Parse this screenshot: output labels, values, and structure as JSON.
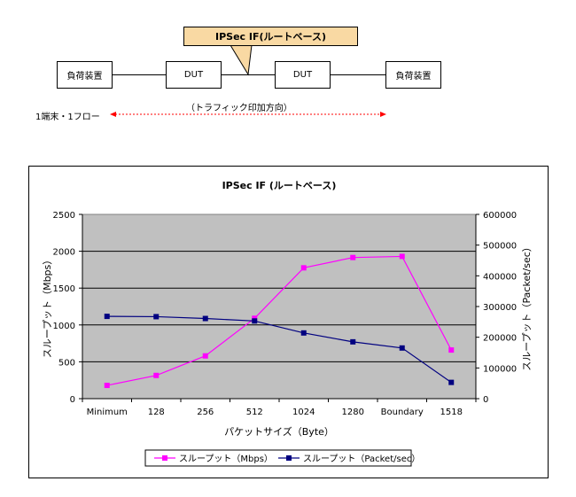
{
  "diagram": {
    "load_left": "負荷装置",
    "dut_left": "DUT",
    "dut_right": "DUT",
    "load_right": "負荷装置",
    "callout": "IPSec IF(ルートベース)",
    "direction_label": "（トラフィック印加方向）",
    "flow_label": "1端末・1フロー"
  },
  "chart_data": {
    "type": "line",
    "title": "IPSec IF (ルートベース)",
    "xlabel": "パケットサイズ（Byte）",
    "ylabel": "スループット（Mbps）",
    "y2label": "スループット（Packet/sec）",
    "categories": [
      "Minimum",
      "128",
      "256",
      "512",
      "1024",
      "1280",
      "Boundary",
      "1518"
    ],
    "ylim": [
      0,
      2500
    ],
    "y2lim": [
      0,
      600000
    ],
    "yticks": [
      "0",
      "500",
      "1000",
      "1500",
      "2000",
      "2500"
    ],
    "y2ticks": [
      "0",
      "100000",
      "200000",
      "300000",
      "400000",
      "500000",
      "600000"
    ],
    "series": [
      {
        "name": "スループット（Mbps）",
        "axis": "left",
        "color": "#ff00ff",
        "marker": "square",
        "values": [
          180,
          315,
          580,
          1090,
          1775,
          1915,
          1930,
          660
        ]
      },
      {
        "name": "スループット（Packet/sec）",
        "axis": "right",
        "color": "#000080",
        "marker": "square",
        "values": [
          268000,
          267000,
          261000,
          253000,
          214000,
          185000,
          165000,
          53000
        ]
      }
    ],
    "plot_background": "#c0c0c0",
    "grid": true,
    "legend": "bottom"
  }
}
